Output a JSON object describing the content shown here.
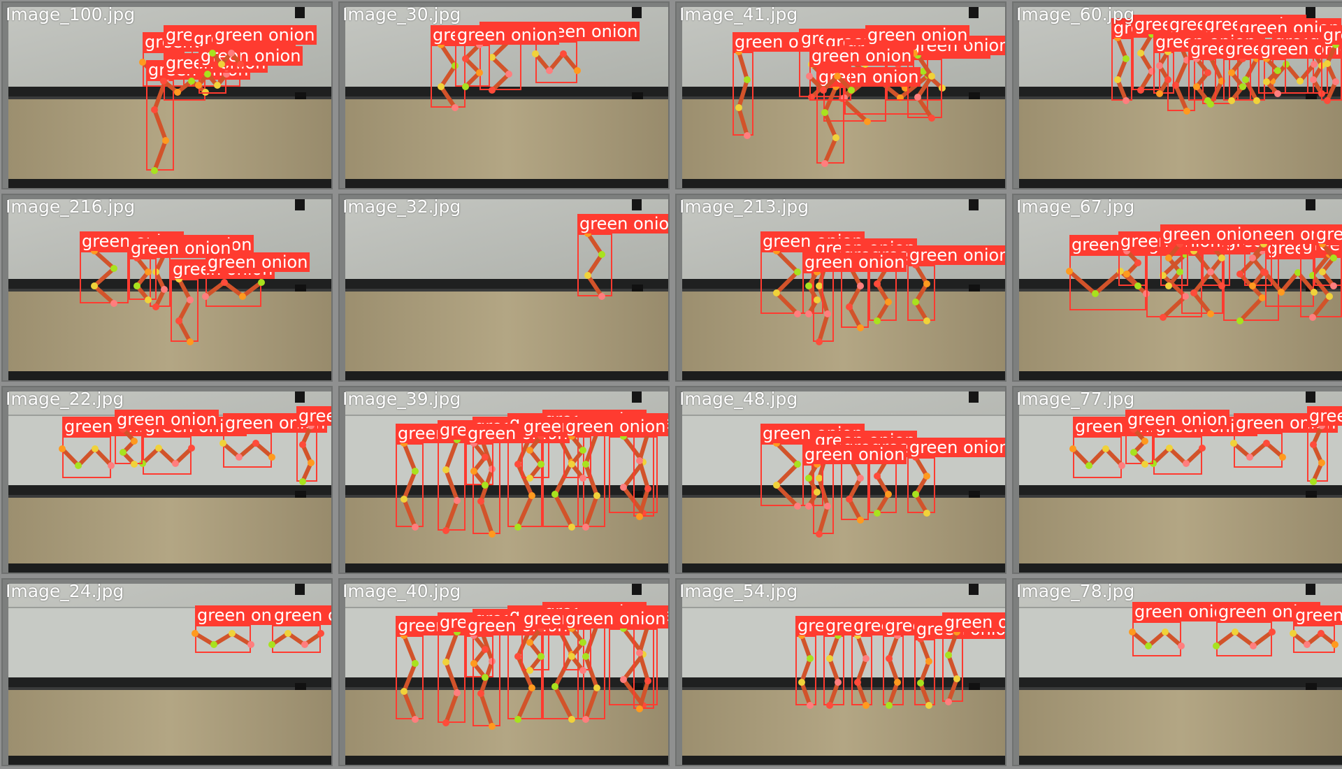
{
  "grid": {
    "rows": 4,
    "cols": 4
  },
  "label_text": "green onion",
  "colors": {
    "box": "#ff3b30",
    "keypoints": [
      "#ff9a1f",
      "#a8e21e",
      "#f0d23a",
      "#ff7e7e",
      "#ff4b3a"
    ],
    "table": "#b9bcb7",
    "rail": "#1f2020"
  },
  "tiles": [
    {
      "title": "Image_100.jpg",
      "scene": "floor",
      "detections": 7
    },
    {
      "title": "Image_30.jpg",
      "scene": "floor",
      "detections": 4
    },
    {
      "title": "Image_41.jpg",
      "scene": "floor",
      "detections": 9
    },
    {
      "title": "Image_60.jpg",
      "scene": "floor",
      "detections": 12
    },
    {
      "title": "Image_216.jpg",
      "scene": "floor",
      "detections": 5
    },
    {
      "title": "Image_32.jpg",
      "scene": "floor",
      "detections": 1
    },
    {
      "title": "Image_213.jpg",
      "scene": "floor",
      "detections": 6
    },
    {
      "title": "Image_67.jpg",
      "scene": "floor",
      "detections": 11
    },
    {
      "title": "Image_22.jpg",
      "scene": "belt",
      "detections": 5
    },
    {
      "title": "Image_39.jpg",
      "scene": "belt",
      "detections": 11
    },
    {
      "title": "Image_48.jpg",
      "scene": "belt",
      "detections": 6
    },
    {
      "title": "Image_77.jpg",
      "scene": "belt",
      "detections": 5
    },
    {
      "title": "Image_24.jpg",
      "scene": "belt",
      "detections": 2
    },
    {
      "title": "Image_40.jpg",
      "scene": "belt",
      "detections": 11
    },
    {
      "title": "Image_54.jpg",
      "scene": "belt",
      "detections": 6
    },
    {
      "title": "Image_78.jpg",
      "scene": "belt",
      "detections": 3
    }
  ]
}
